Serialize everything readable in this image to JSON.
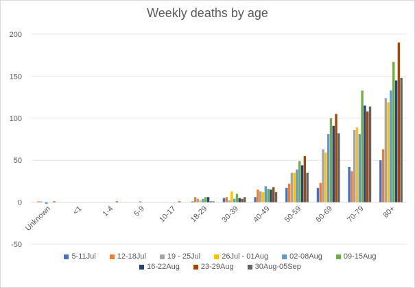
{
  "chart_data": {
    "type": "bar",
    "title": "Weekly deaths by age",
    "xlabel": "",
    "ylabel": "",
    "ylim": [
      -50,
      200
    ],
    "yticks": [
      -50,
      0,
      50,
      100,
      150,
      200
    ],
    "grid": true,
    "legend_position": "bottom",
    "categories": [
      "Unknown",
      "<1",
      "1-4",
      "5-9",
      "10-17",
      "18-29",
      "30-39",
      "40-49",
      "50-59",
      "60-69",
      "70-79",
      "80+"
    ],
    "series": [
      {
        "name": "5-11Jul",
        "color": "#4472C4",
        "values": [
          0,
          0,
          0,
          0,
          0,
          1,
          5,
          6,
          17,
          17,
          42,
          50
        ]
      },
      {
        "name": "12-18Jul",
        "color": "#ED7D31",
        "values": [
          1,
          0,
          0,
          0,
          0,
          6,
          6,
          15,
          22,
          23,
          37,
          63
        ]
      },
      {
        "name": "19 - 25Jul",
        "color": "#A5A5A5",
        "values": [
          1,
          0,
          0,
          0,
          0,
          4,
          2,
          13,
          35,
          63,
          86,
          124
        ]
      },
      {
        "name": "26Jul - 01Aug",
        "color": "#FFC000",
        "values": [
          0,
          0,
          0,
          0,
          0,
          2,
          13,
          12,
          35,
          59,
          89,
          119
        ]
      },
      {
        "name": "02-08Aug",
        "color": "#5B9BD5",
        "values": [
          -2,
          0,
          0,
          1,
          0,
          4,
          4,
          19,
          39,
          81,
          81,
          133
        ]
      },
      {
        "name": "09-15Aug",
        "color": "#70AD47",
        "values": [
          0,
          0,
          0,
          0,
          0,
          6,
          10,
          16,
          49,
          100,
          133,
          167
        ]
      },
      {
        "name": "16-22Aug",
        "color": "#264478",
        "values": [
          0,
          0,
          0,
          0,
          0,
          6,
          5,
          15,
          44,
          91,
          115,
          145
        ]
      },
      {
        "name": "23-29Aug",
        "color": "#9E480E",
        "values": [
          1,
          0,
          1,
          0,
          1,
          1,
          4,
          18,
          55,
          105,
          108,
          190
        ]
      },
      {
        "name": "30Aug-05Sep",
        "color": "#636363",
        "values": [
          0,
          0,
          0,
          0,
          0,
          1,
          6,
          12,
          35,
          82,
          114,
          148
        ]
      }
    ]
  }
}
